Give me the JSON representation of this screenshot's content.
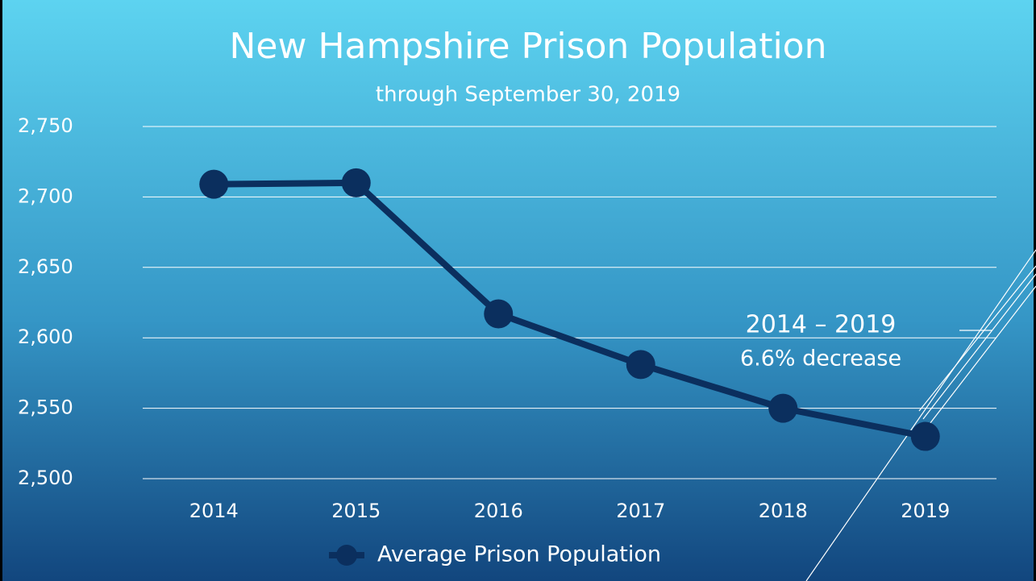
{
  "chart_data": {
    "type": "line",
    "title": "New Hampshire Prison Population",
    "subtitle": "through September 30, 2019",
    "categories": [
      "2014",
      "2015",
      "2016",
      "2017",
      "2018",
      "2019"
    ],
    "series": [
      {
        "name": "Average Prison Population",
        "color": "#0b2f5e",
        "values": [
          2709,
          2710,
          2617,
          2581,
          2550,
          2530
        ]
      }
    ],
    "ylim": [
      2500,
      2750
    ],
    "yticks": [
      {
        "value": 2500,
        "label": "2,500"
      },
      {
        "value": 2550,
        "label": "2,550"
      },
      {
        "value": 2600,
        "label": "2,600"
      },
      {
        "value": 2650,
        "label": "2,650"
      },
      {
        "value": 2700,
        "label": "2,700"
      },
      {
        "value": 2750,
        "label": "2,750"
      }
    ],
    "grid": true,
    "legend": "bottom",
    "annotations": [
      "2014 – 2019",
      "6.6% decrease"
    ]
  }
}
